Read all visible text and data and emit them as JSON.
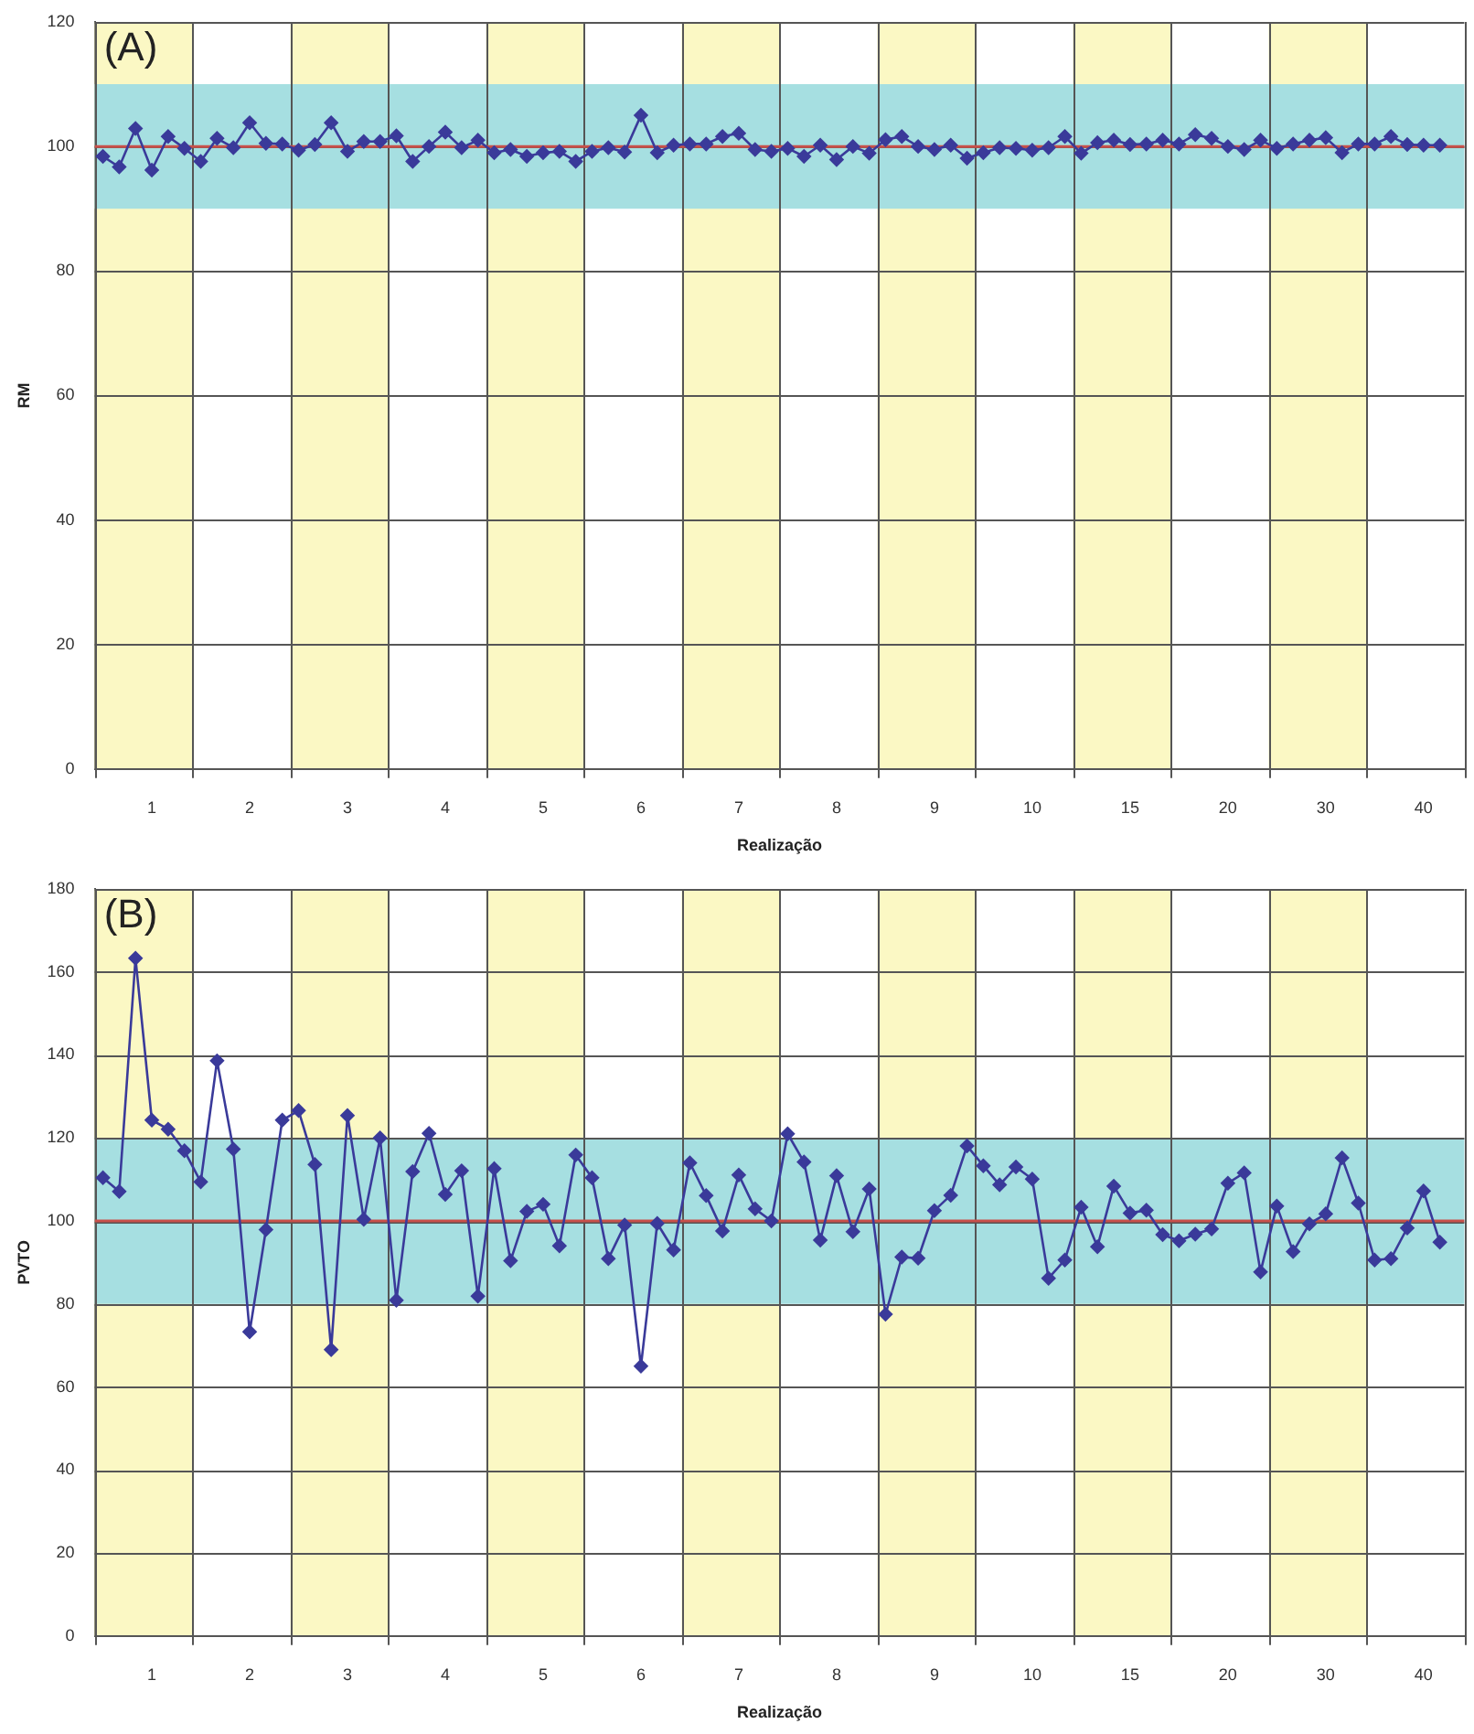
{
  "chart_data": [
    {
      "type": "line",
      "annotations": [
        "(A)"
      ],
      "xlabel": "Realização",
      "ylabel": "RM",
      "grid": true,
      "marker": "diamond",
      "categories": [
        null,
        null,
        null,
        "1",
        null,
        null,
        null,
        null,
        null,
        "2",
        null,
        null,
        null,
        null,
        null,
        "3",
        null,
        null,
        null,
        null,
        null,
        "4",
        null,
        null,
        null,
        null,
        null,
        "5",
        null,
        null,
        null,
        null,
        null,
        "6",
        null,
        null,
        null,
        null,
        null,
        "7",
        null,
        null,
        null,
        null,
        null,
        "8",
        null,
        null,
        null,
        null,
        null,
        "9",
        null,
        null,
        null,
        null,
        null,
        "10",
        null,
        null,
        null,
        null,
        null,
        "15",
        null,
        null,
        null,
        null,
        null,
        "20",
        null,
        null,
        null,
        null,
        null,
        "30",
        null,
        null,
        null,
        null,
        null,
        "40",
        null,
        null
      ],
      "ylim": [
        0,
        120
      ],
      "yticks": [
        0,
        20,
        40,
        60,
        80,
        100,
        120
      ],
      "bands": [
        {
          "axis": "y",
          "from": 90,
          "to": 110,
          "color": "#a6dfe1"
        }
      ],
      "ref_lines": [
        {
          "axis": "y",
          "value": 100,
          "color": "#c8504a"
        }
      ],
      "series": [
        {
          "color": "#3a3a9a",
          "values": [
            98.4,
            96.7,
            102.9,
            96.2,
            101.6,
            99.7,
            97.6,
            101.3,
            99.8,
            103.8,
            100.5,
            100.4,
            99.4,
            100.3,
            103.8,
            99.2,
            100.8,
            100.8,
            101.7,
            97.6,
            100,
            102.3,
            99.8,
            101,
            99,
            99.5,
            98.4,
            99,
            99.2,
            97.6,
            99.2,
            99.8,
            99.1,
            105,
            99,
            100.2,
            100.4,
            100.4,
            101.6,
            102.1,
            99.5,
            99.2,
            99.7,
            98.4,
            100.2,
            97.9,
            100,
            98.9,
            101.1,
            101.6,
            100,
            99.5,
            100.2,
            98.1,
            99,
            99.8,
            99.7,
            99.4,
            99.8,
            101.6,
            98.9,
            100.6,
            101,
            100.3,
            100.4,
            101,
            100.4,
            101.9,
            101.3,
            100,
            99.5,
            101,
            99.7,
            100.4,
            101,
            101.4,
            99,
            100.4,
            100.4,
            101.6,
            100.3,
            100.2,
            100.2,
            null
          ]
        }
      ]
    },
    {
      "type": "line",
      "annotations": [
        "(B)"
      ],
      "xlabel": "Realização",
      "ylabel": "PVTO",
      "grid": true,
      "marker": "diamond",
      "categories": [
        null,
        null,
        null,
        "1",
        null,
        null,
        null,
        null,
        null,
        "2",
        null,
        null,
        null,
        null,
        null,
        "3",
        null,
        null,
        null,
        null,
        null,
        "4",
        null,
        null,
        null,
        null,
        null,
        "5",
        null,
        null,
        null,
        null,
        null,
        "6",
        null,
        null,
        null,
        null,
        null,
        "7",
        null,
        null,
        null,
        null,
        null,
        "8",
        null,
        null,
        null,
        null,
        null,
        "9",
        null,
        null,
        null,
        null,
        null,
        "10",
        null,
        null,
        null,
        null,
        null,
        "15",
        null,
        null,
        null,
        null,
        null,
        "20",
        null,
        null,
        null,
        null,
        null,
        "30",
        null,
        null,
        null,
        null,
        null,
        "40",
        null,
        null
      ],
      "ylim": [
        0,
        180
      ],
      "yticks": [
        0,
        20,
        40,
        60,
        80,
        100,
        120,
        140,
        160,
        180
      ],
      "bands": [
        {
          "axis": "y",
          "from": 80,
          "to": 120,
          "color": "#a6dfe1"
        }
      ],
      "ref_lines": [
        {
          "axis": "y",
          "value": 100,
          "color": "#c8504a"
        }
      ],
      "series": [
        {
          "color": "#3a3a9a",
          "values": [
            110.4,
            107.1,
            163.3,
            124.3,
            122.1,
            116.9,
            109.4,
            138.6,
            117.3,
            73.3,
            97.9,
            124.3,
            126.6,
            113.6,
            69,
            125.4,
            100.4,
            120,
            80.9,
            111.9,
            121.1,
            106.4,
            112.1,
            81.9,
            112.6,
            90.4,
            102.3,
            104,
            94,
            115.9,
            110.4,
            90.9,
            99,
            65,
            99.4,
            93,
            114,
            106.1,
            97.6,
            111.1,
            102.9,
            100,
            121,
            114.2,
            95.4,
            110.9,
            97.4,
            107.7,
            77.5,
            91.3,
            91,
            102.5,
            106.2,
            118.1,
            113.3,
            108.7,
            113,
            110.1,
            86.2,
            90.6,
            103.3,
            93.8,
            108.4,
            101.9,
            102.6,
            96.7,
            95.2,
            96.8,
            98.1,
            109.1,
            111.6,
            87.7,
            103.6,
            92.6,
            99.3,
            101.7,
            115.2,
            104.3,
            90.6,
            90.9,
            98.3,
            107.2,
            94.9,
            null
          ]
        }
      ]
    }
  ]
}
